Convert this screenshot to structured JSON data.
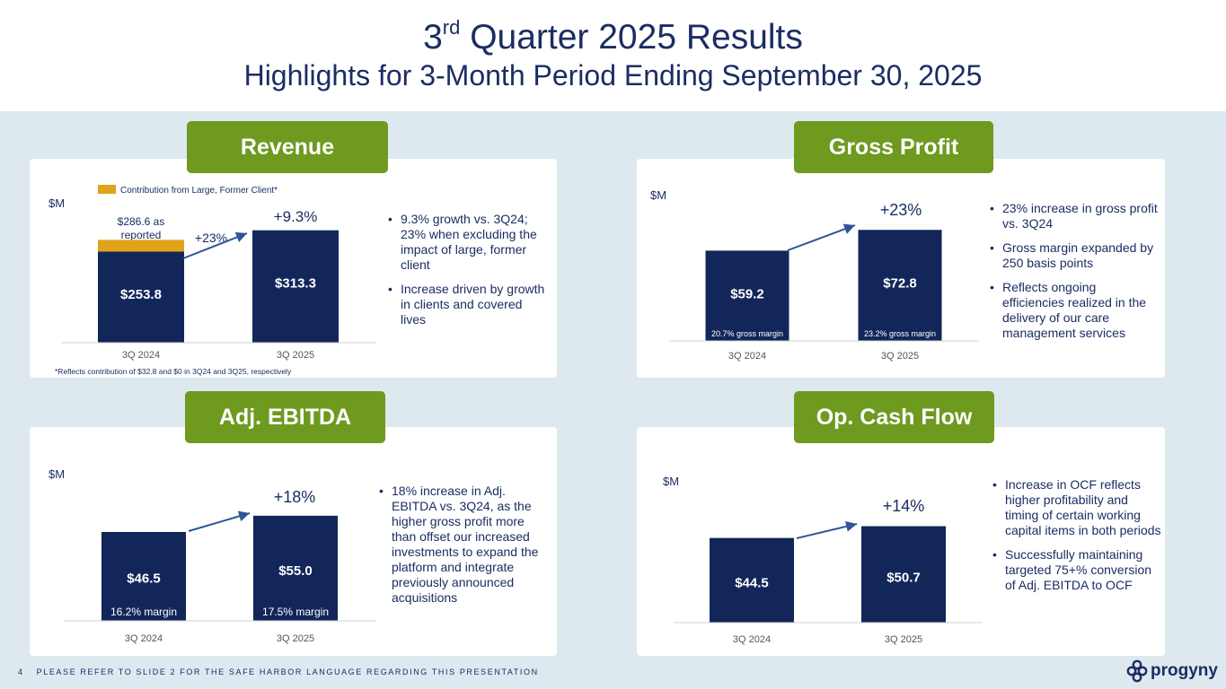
{
  "header": {
    "title_prefix": "3",
    "title_sup": "rd",
    "title_rest": " Quarter 2025 Results",
    "subtitle": "Highlights for 3-Month Period Ending September 30, 2025"
  },
  "colors": {
    "bar": "#13265a",
    "accent_green": "#6e9a1f",
    "former_client": "#e0a21b",
    "arrow": "#2f5597"
  },
  "panels": {
    "revenue": {
      "tab": "Revenue",
      "unit": "$M",
      "legend": "Contribution from Large, Former Client*",
      "reported_note": "$286.6 as reported",
      "reported_note_line1": "$286.6 as",
      "reported_note_line2": "reported",
      "arrow_label": "+23%",
      "growth_label": "+9.3%",
      "footnote": "*Reflects contribution of $32.8 and $0 in 3Q24 and 3Q25, respectively",
      "bullets": [
        "9.3% growth vs. 3Q24; 23% when excluding the impact of large, former client",
        "Increase driven by growth in clients and covered lives"
      ]
    },
    "gross_profit": {
      "tab": "Gross Profit",
      "unit": "$M",
      "growth_label": "+23%",
      "bullets": [
        "23% increase in gross profit vs. 3Q24",
        "Gross margin expanded by 250 basis points",
        "Reflects ongoing efficiencies realized in the delivery of our care management services"
      ]
    },
    "adj_ebitda": {
      "tab": "Adj. EBITDA",
      "unit": "$M",
      "growth_label": "+18%",
      "bullets": [
        "18% increase in Adj. EBITDA vs. 3Q24, as the higher gross profit more than offset our increased investments to expand the platform and integrate previously announced acquisitions"
      ]
    },
    "op_cash_flow": {
      "tab": "Op. Cash Flow",
      "unit": "$M",
      "growth_label": "+14%",
      "bullets": [
        "Increase in OCF reflects higher profitability and timing of certain working capital items in both periods",
        "Successfully maintaining targeted 75+% conversion of Adj. EBITDA to OCF"
      ]
    }
  },
  "chart_data": [
    {
      "type": "bar",
      "categories": [
        "3Q 2024",
        "3Q 2025"
      ],
      "series": [
        {
          "name": "",
          "values": [
            253.8,
            313.3
          ],
          "labels": [
            "$253.8",
            "$313.3"
          ]
        },
        {
          "name": "Contribution from Large, Former Client*",
          "values": [
            32.8,
            0
          ]
        }
      ],
      "stacked": true,
      "ylabel": "$M"
    },
    {
      "type": "bar",
      "categories": [
        "3Q 2024",
        "3Q 2025"
      ],
      "values": [
        59.2,
        72.8
      ],
      "labels": [
        "$59.2",
        "$72.8"
      ],
      "margin_labels": [
        "20.7% gross margin",
        "23.2% gross margin"
      ],
      "ylabel": "$M"
    },
    {
      "type": "bar",
      "categories": [
        "3Q 2024",
        "3Q 2025"
      ],
      "values": [
        46.5,
        55.0
      ],
      "labels": [
        "$46.5",
        "$55.0"
      ],
      "margin_labels": [
        "16.2% margin",
        "17.5% margin"
      ],
      "ylabel": "$M"
    },
    {
      "type": "bar",
      "categories": [
        "3Q 2024",
        "3Q 2025"
      ],
      "values": [
        44.5,
        50.7
      ],
      "labels": [
        "$44.5",
        "$50.7"
      ],
      "ylabel": "$M"
    }
  ],
  "footer": {
    "page_number": "4",
    "text": "PLEASE REFER TO SLIDE 2 FOR THE SAFE HARBOR LANGUAGE REGARDING THIS PRESENTATION",
    "logo_text": "progyny",
    "logo_icon": "progyny-logo-icon"
  }
}
